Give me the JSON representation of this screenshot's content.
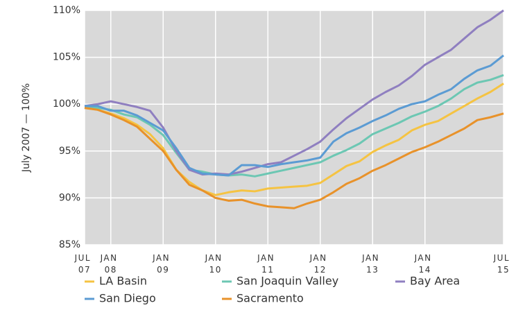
{
  "chart_data": {
    "type": "line",
    "y_label": "July 2007 — 100%",
    "x": [
      2007.5,
      2007.75,
      2008,
      2008.25,
      2008.5,
      2008.75,
      2009,
      2009.25,
      2009.5,
      2009.75,
      2010,
      2010.25,
      2010.5,
      2010.75,
      2011,
      2011.25,
      2011.5,
      2011.75,
      2012,
      2012.25,
      2012.5,
      2012.75,
      2013,
      2013.25,
      2013.5,
      2013.75,
      2014,
      2014.25,
      2014.5,
      2014.75,
      2015,
      2015.25,
      2015.5
    ],
    "series": [
      {
        "name": "LA Basin",
        "color": "#f5c342",
        "values": [
          99.6,
          99.4,
          99.0,
          98.5,
          97.8,
          96.8,
          95.3,
          93.0,
          91.7,
          90.8,
          90.3,
          90.6,
          90.8,
          90.7,
          91.0,
          91.1,
          91.2,
          91.3,
          91.6,
          92.5,
          93.4,
          93.9,
          94.9,
          95.6,
          96.2,
          97.2,
          97.8,
          98.2,
          99.0,
          99.8,
          100.6,
          101.3,
          102.2
        ]
      },
      {
        "name": "San Joaquin Valley",
        "color": "#6cc7b3",
        "values": [
          99.7,
          99.6,
          99.4,
          98.9,
          98.6,
          97.8,
          96.7,
          94.8,
          93.0,
          92.8,
          92.5,
          92.4,
          92.5,
          92.3,
          92.6,
          92.9,
          93.2,
          93.5,
          93.8,
          94.5,
          95.1,
          95.8,
          96.8,
          97.4,
          98.0,
          98.7,
          99.2,
          99.8,
          100.6,
          101.6,
          102.3,
          102.6,
          103.1
        ]
      },
      {
        "name": "Bay Area",
        "color": "#8f7fc0",
        "values": [
          99.8,
          100.0,
          100.3,
          100.0,
          99.7,
          99.3,
          97.5,
          95.0,
          93.0,
          92.5,
          92.6,
          92.5,
          92.8,
          93.2,
          93.6,
          93.8,
          94.5,
          95.2,
          96.0,
          97.3,
          98.5,
          99.5,
          100.5,
          101.3,
          102.0,
          103.0,
          104.2,
          105.0,
          105.8,
          107.0,
          108.2,
          109.0,
          110.0
        ]
      },
      {
        "name": "San Diego",
        "color": "#5b9bd3",
        "values": [
          99.8,
          99.8,
          99.3,
          99.3,
          98.8,
          98.0,
          97.2,
          95.3,
          93.2,
          92.6,
          92.5,
          92.4,
          93.5,
          93.5,
          93.3,
          93.6,
          93.8,
          94.0,
          94.3,
          96.0,
          96.9,
          97.5,
          98.2,
          98.8,
          99.5,
          100.0,
          100.3,
          101.0,
          101.6,
          102.7,
          103.6,
          104.1,
          105.2
        ]
      },
      {
        "name": "Sacramento",
        "color": "#e8922a",
        "values": [
          99.6,
          99.4,
          98.9,
          98.3,
          97.6,
          96.3,
          95.0,
          93.0,
          91.4,
          90.8,
          90.0,
          89.7,
          89.8,
          89.4,
          89.1,
          89.0,
          88.9,
          89.4,
          89.8,
          90.6,
          91.5,
          92.1,
          92.9,
          93.5,
          94.2,
          94.9,
          95.4,
          96.0,
          96.7,
          97.4,
          98.3,
          98.6,
          99.0
        ]
      }
    ],
    "xlim": [
      2007.5,
      2015.5
    ],
    "xticks": [
      {
        "value": 2007.5,
        "label": "JUL 07"
      },
      {
        "value": 2008,
        "label": "JAN 08"
      },
      {
        "value": 2009,
        "label": "JAN 09"
      },
      {
        "value": 2010,
        "label": "JAN 10"
      },
      {
        "value": 2011,
        "label": "JAN 11"
      },
      {
        "value": 2012,
        "label": "JAN 12"
      },
      {
        "value": 2013,
        "label": "JAN 13"
      },
      {
        "value": 2014,
        "label": "JAN 14"
      },
      {
        "value": 2015.5,
        "label": "JUL 15"
      }
    ],
    "ylim": [
      85,
      110
    ],
    "yticks": [
      {
        "value": 85,
        "label": "85%"
      },
      {
        "value": 90,
        "label": "90%"
      },
      {
        "value": 95,
        "label": "95%"
      },
      {
        "value": 100,
        "label": "100%"
      },
      {
        "value": 105,
        "label": "105%"
      },
      {
        "value": 110,
        "label": "110%"
      }
    ],
    "grid": true,
    "background": "#d9d9d9",
    "legend": "bottom"
  }
}
